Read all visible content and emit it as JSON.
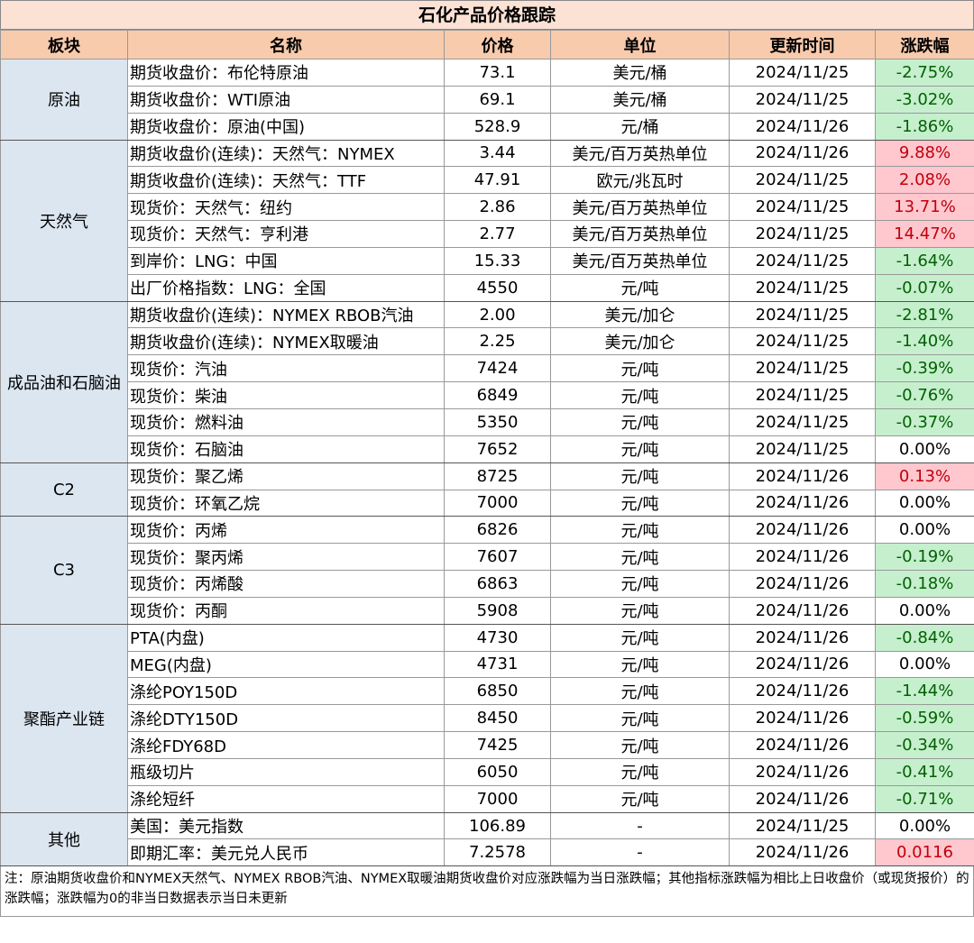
{
  "title": "石化产品价格跟踪",
  "header": [
    "板块",
    "名称",
    "价格",
    "单位",
    "更新时间",
    "涨跌幅"
  ],
  "sections": [
    {
      "name": "原油",
      "rows": [
        [
          "期货收盘价：布伦特原油",
          "73.1",
          "美元/桶",
          "2024/11/25",
          "-2.75%"
        ],
        [
          "期货收盘价：WTI原油",
          "69.1",
          "美元/桶",
          "2024/11/25",
          "-3.02%"
        ],
        [
          "期货收盘价：原油(中国)",
          "528.9",
          "元/桶",
          "2024/11/26",
          "-1.86%"
        ]
      ]
    },
    {
      "name": "天然气",
      "rows": [
        [
          "期货收盘价(连续)：天然气：NYMEX",
          "3.44",
          "美元/百万英热单位",
          "2024/11/26",
          "9.88%"
        ],
        [
          "期货收盘价(连续)：天然气：TTF",
          "47.91",
          "欧元/兆瓦时",
          "2024/11/25",
          "2.08%"
        ],
        [
          "现货价：天然气：纽约",
          "2.86",
          "美元/百万英热单位",
          "2024/11/25",
          "13.71%"
        ],
        [
          "现货价：天然气：亨利港",
          "2.77",
          "美元/百万英热单位",
          "2024/11/25",
          "14.47%"
        ],
        [
          "到岸价：LNG：中国",
          "15.33",
          "美元/百万英热单位",
          "2024/11/25",
          "-1.64%"
        ],
        [
          "出厂价格指数：LNG：全国",
          "4550",
          "元/吨",
          "2024/11/25",
          "-0.07%"
        ]
      ]
    },
    {
      "name": "成品油和石脑油",
      "rows": [
        [
          "期货收盘价(连续)：NYMEX RBOB汽油",
          "2.00",
          "美元/加仑",
          "2024/11/25",
          "-2.81%"
        ],
        [
          "期货收盘价(连续)：NYMEX取暖油",
          "2.25",
          "美元/加仑",
          "2024/11/25",
          "-1.40%"
        ],
        [
          "现货价：汽油",
          "7424",
          "元/吨",
          "2024/11/25",
          "-0.39%"
        ],
        [
          "现货价：柴油",
          "6849",
          "元/吨",
          "2024/11/25",
          "-0.76%"
        ],
        [
          "现货价：燃料油",
          "5350",
          "元/吨",
          "2024/11/25",
          "-0.37%"
        ],
        [
          "现货价：石脑油",
          "7652",
          "元/吨",
          "2024/11/25",
          "0.00%"
        ]
      ]
    },
    {
      "name": "C2",
      "rows": [
        [
          "现货价：聚乙烯",
          "8725",
          "元/吨",
          "2024/11/26",
          "0.13%"
        ],
        [
          "现货价：环氧乙烷",
          "7000",
          "元/吨",
          "2024/11/26",
          "0.00%"
        ]
      ]
    },
    {
      "name": "C3",
      "rows": [
        [
          "现货价：丙烯",
          "6826",
          "元/吨",
          "2024/11/26",
          "0.00%"
        ],
        [
          "现货价：聚丙烯",
          "7607",
          "元/吨",
          "2024/11/26",
          "-0.19%"
        ],
        [
          "现货价：丙烯酸",
          "6863",
          "元/吨",
          "2024/11/26",
          "-0.18%"
        ],
        [
          "现货价：丙酮",
          "5908",
          "元/吨",
          "2024/11/26",
          "0.00%"
        ]
      ]
    },
    {
      "name": "聚酯产业链",
      "rows": [
        [
          "PTA(内盘)",
          "4730",
          "元/吨",
          "2024/11/26",
          "-0.84%"
        ],
        [
          "MEG(内盘)",
          "4731",
          "元/吨",
          "2024/11/26",
          "0.00%"
        ],
        [
          "涤纶POY150D",
          "6850",
          "元/吨",
          "2024/11/26",
          "-1.44%"
        ],
        [
          "涤纶DTY150D",
          "8450",
          "元/吨",
          "2024/11/26",
          "-0.59%"
        ],
        [
          "涤纶FDY68D",
          "7425",
          "元/吨",
          "2024/11/26",
          "-0.34%"
        ],
        [
          "瓶级切片",
          "6050",
          "元/吨",
          "2024/11/26",
          "-0.41%"
        ],
        [
          "涤纶短纤",
          "7000",
          "元/吨",
          "2024/11/26",
          "-0.71%"
        ]
      ]
    },
    {
      "name": "其他",
      "rows": [
        [
          "美国：美元指数",
          "106.89",
          "-",
          "2024/11/25",
          "0.00%"
        ],
        [
          "即期汇率：美元兑人民币",
          "7.2578",
          "-",
          "2024/11/26",
          "0.0116"
        ]
      ]
    }
  ],
  "note": "注：原油期货收盘价和NYMEX天然气、NYMEX RBOB汽油、NYMEX取暖油期货收盘价对应涨跌幅为当日涨跌幅；其他指标涨跌幅为相比上日收盘价（或现货报价）的涨跌幅；涨跌幅为0的非当日数据表示当日未更新"
}
